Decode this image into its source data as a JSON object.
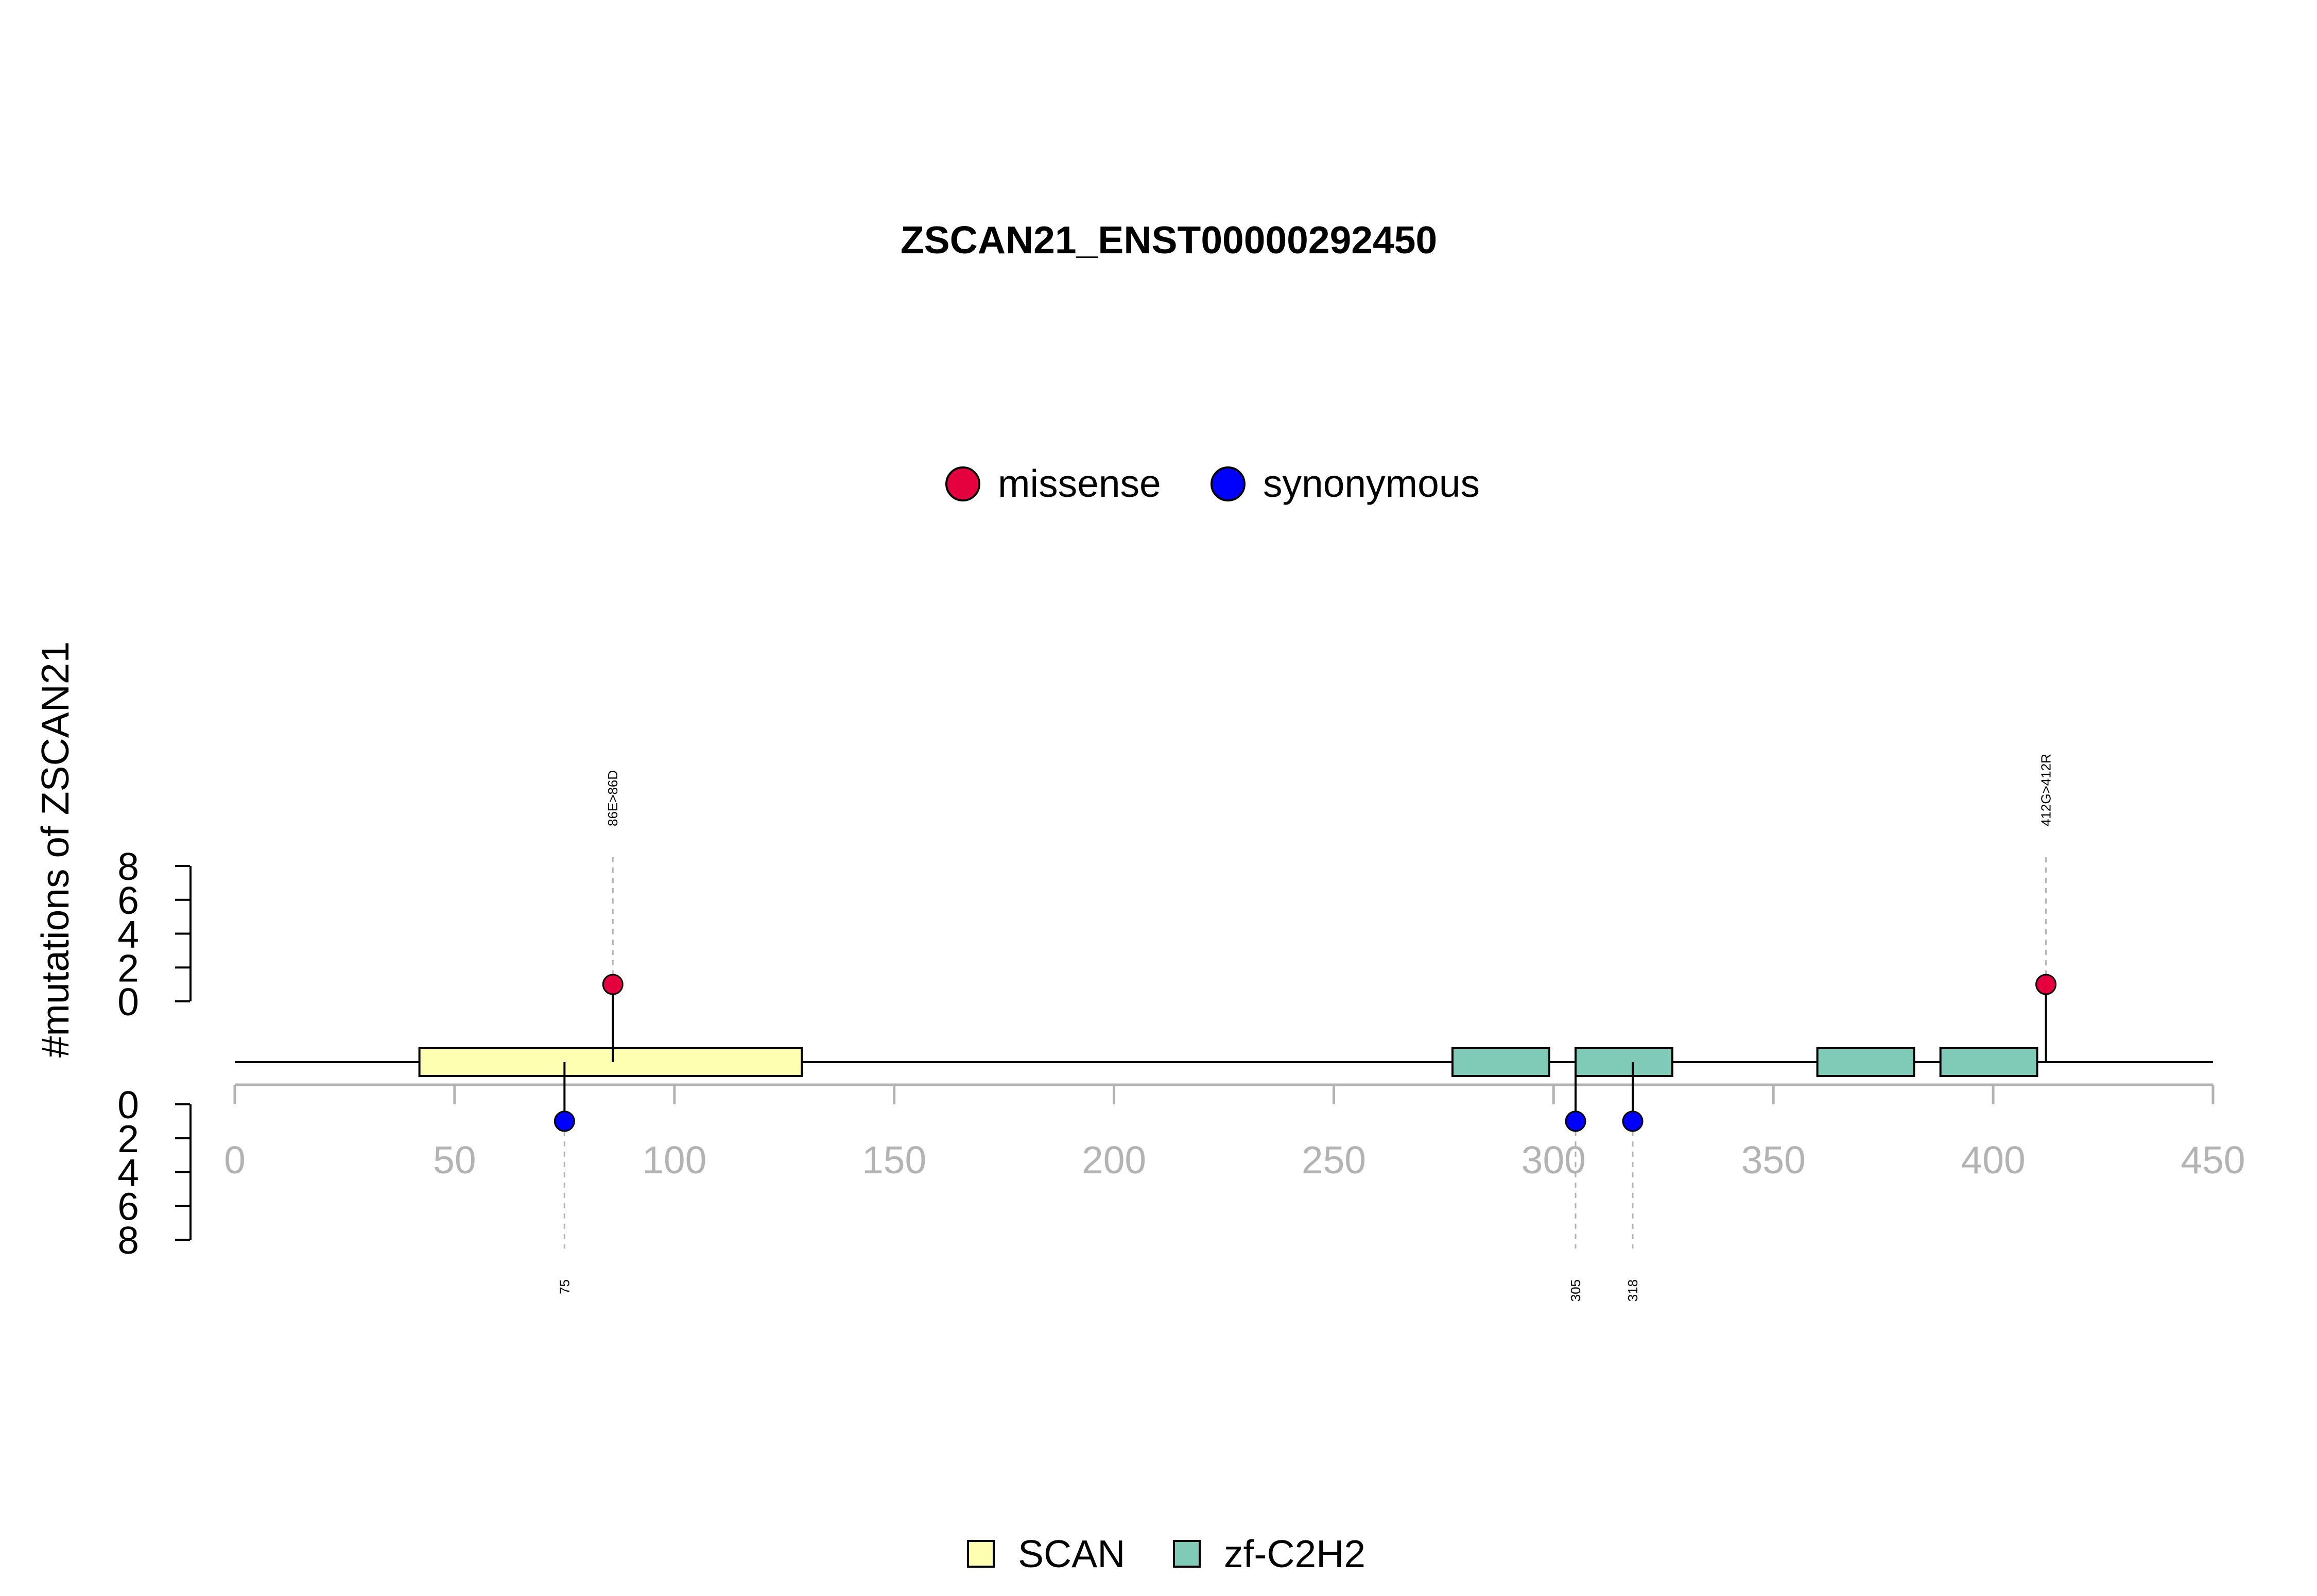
{
  "chart_data": {
    "type": "lollipop",
    "title": "ZSCAN21_ENST00000292450",
    "ylabel": "#mutations of ZSCAN21",
    "protein_length": 450,
    "xlim": [
      0,
      450
    ],
    "xticks": [
      0,
      50,
      100,
      150,
      200,
      250,
      300,
      350,
      400,
      450
    ],
    "ylim": [
      0,
      8
    ],
    "yticks_top": [
      "8",
      "6",
      "4",
      "2",
      "0"
    ],
    "yticks_bottom": [
      "0",
      "2",
      "4",
      "6",
      "8"
    ],
    "mutation_legend": [
      {
        "label": "missense",
        "color": "#e5003e"
      },
      {
        "label": "synonymous",
        "color": "#0000ff"
      }
    ],
    "domain_legend": [
      {
        "label": "SCAN",
        "color": "#ffffb2"
      },
      {
        "label": "zf-C2H2",
        "color": "#80cbb8"
      }
    ],
    "domains": [
      {
        "name": "SCAN",
        "start": 42,
        "end": 129,
        "color": "#ffffb2"
      },
      {
        "name": "zf-C2H2",
        "start": 277,
        "end": 299,
        "color": "#80cbb8"
      },
      {
        "name": "zf-C2H2",
        "start": 305,
        "end": 327,
        "color": "#80cbb8"
      },
      {
        "name": "zf-C2H2",
        "start": 360,
        "end": 382,
        "color": "#80cbb8"
      },
      {
        "name": "zf-C2H2",
        "start": 388,
        "end": 410,
        "color": "#80cbb8"
      }
    ],
    "mutations": [
      {
        "position": 86,
        "count": 1,
        "type": "missense",
        "side": "top",
        "label": "86E>86D"
      },
      {
        "position": 412,
        "count": 1,
        "type": "missense",
        "side": "top",
        "label": "412G>412R"
      },
      {
        "position": 75,
        "count": 1,
        "type": "synonymous",
        "side": "bottom",
        "label": "75"
      },
      {
        "position": 305,
        "count": 1,
        "type": "synonymous",
        "side": "bottom",
        "label": "305"
      },
      {
        "position": 318,
        "count": 1,
        "type": "synonymous",
        "side": "bottom",
        "label": "318"
      }
    ]
  }
}
